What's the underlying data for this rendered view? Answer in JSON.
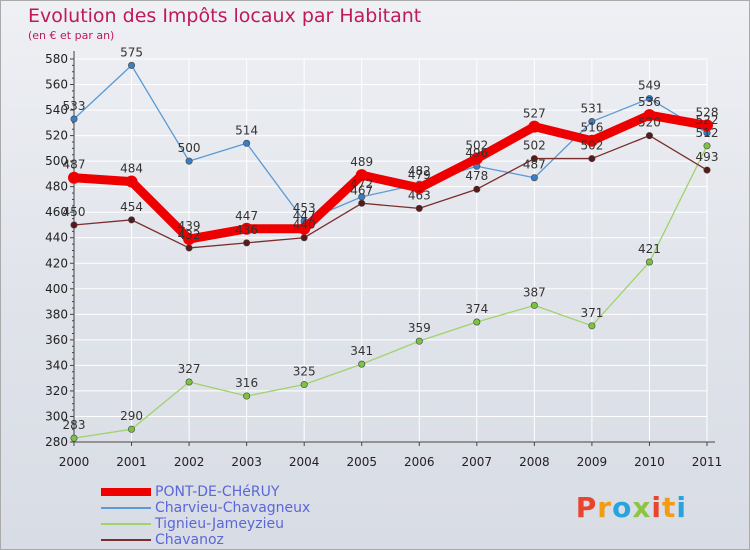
{
  "colors": {
    "title": "#c0185c",
    "grid": "#ffffff",
    "axis": "#444444",
    "legend_text": "#5a67d8"
  },
  "logo": {
    "letters": [
      {
        "char": "P",
        "color": "#e8442e"
      },
      {
        "char": "r",
        "color": "#f39c12"
      },
      {
        "char": "o",
        "color": "#27a4dd"
      },
      {
        "char": "x",
        "color": "#8cc63f"
      },
      {
        "char": "i",
        "color": "#e8442e"
      },
      {
        "char": "t",
        "color": "#f39c12"
      },
      {
        "char": "i",
        "color": "#27a4dd"
      }
    ]
  },
  "chart_data": {
    "type": "line",
    "title": "Evolution des Impôts locaux par Habitant",
    "subtitle": "(en € et par an)",
    "categories": [
      "2000",
      "2001",
      "2002",
      "2003",
      "2004",
      "2005",
      "2006",
      "2007",
      "2008",
      "2009",
      "2010",
      "2011"
    ],
    "ylim": [
      280,
      580
    ],
    "yticks": [
      280,
      300,
      320,
      340,
      360,
      380,
      400,
      420,
      440,
      460,
      480,
      500,
      520,
      540,
      560,
      580
    ],
    "grid": true,
    "legend_position": "bottom-left",
    "series": [
      {
        "name": "PONT-DE-CHéRUY",
        "color": "#ee0000",
        "marker": "#ee0000",
        "width": "thick",
        "values": [
          487,
          484,
          439,
          447,
          447,
          489,
          479,
          502,
          527,
          516,
          536,
          528
        ],
        "labels": [
          "487",
          "484",
          "439",
          "447",
          "447",
          "489",
          "479",
          "502",
          "527",
          "516",
          "536",
          "528"
        ]
      },
      {
        "name": "Charvieu-Chavagneux",
        "color": "#5b9bd5",
        "marker": "#3a7fc4",
        "width": "thin",
        "values": [
          533,
          575,
          500,
          514,
          453,
          472,
          482,
          496,
          487,
          531,
          549,
          522
        ],
        "labels": [
          "533",
          "575",
          "500",
          "514",
          "453",
          "472",
          "482",
          "496",
          "487",
          "531",
          "549",
          "522"
        ]
      },
      {
        "name": "Tignieu-Jameyzieu",
        "color": "#9fd36a",
        "marker": "#7dc242",
        "width": "thin",
        "values": [
          283,
          290,
          327,
          316,
          325,
          341,
          359,
          374,
          387,
          371,
          421,
          512
        ],
        "labels": [
          "283",
          "290",
          "327",
          "316",
          "325",
          "341",
          "359",
          "374",
          "387",
          "371",
          "421",
          "512"
        ]
      },
      {
        "name": "Chavanoz",
        "color": "#7a2e2e",
        "marker": "#5a1a1a",
        "width": "thin",
        "values": [
          450,
          454,
          432,
          436,
          440,
          467,
          463,
          478,
          502,
          502,
          520,
          493
        ],
        "labels": [
          "450",
          "454",
          "432",
          "436",
          "440",
          "467",
          "463",
          "478",
          "502",
          "502",
          "520",
          "493"
        ]
      }
    ]
  }
}
